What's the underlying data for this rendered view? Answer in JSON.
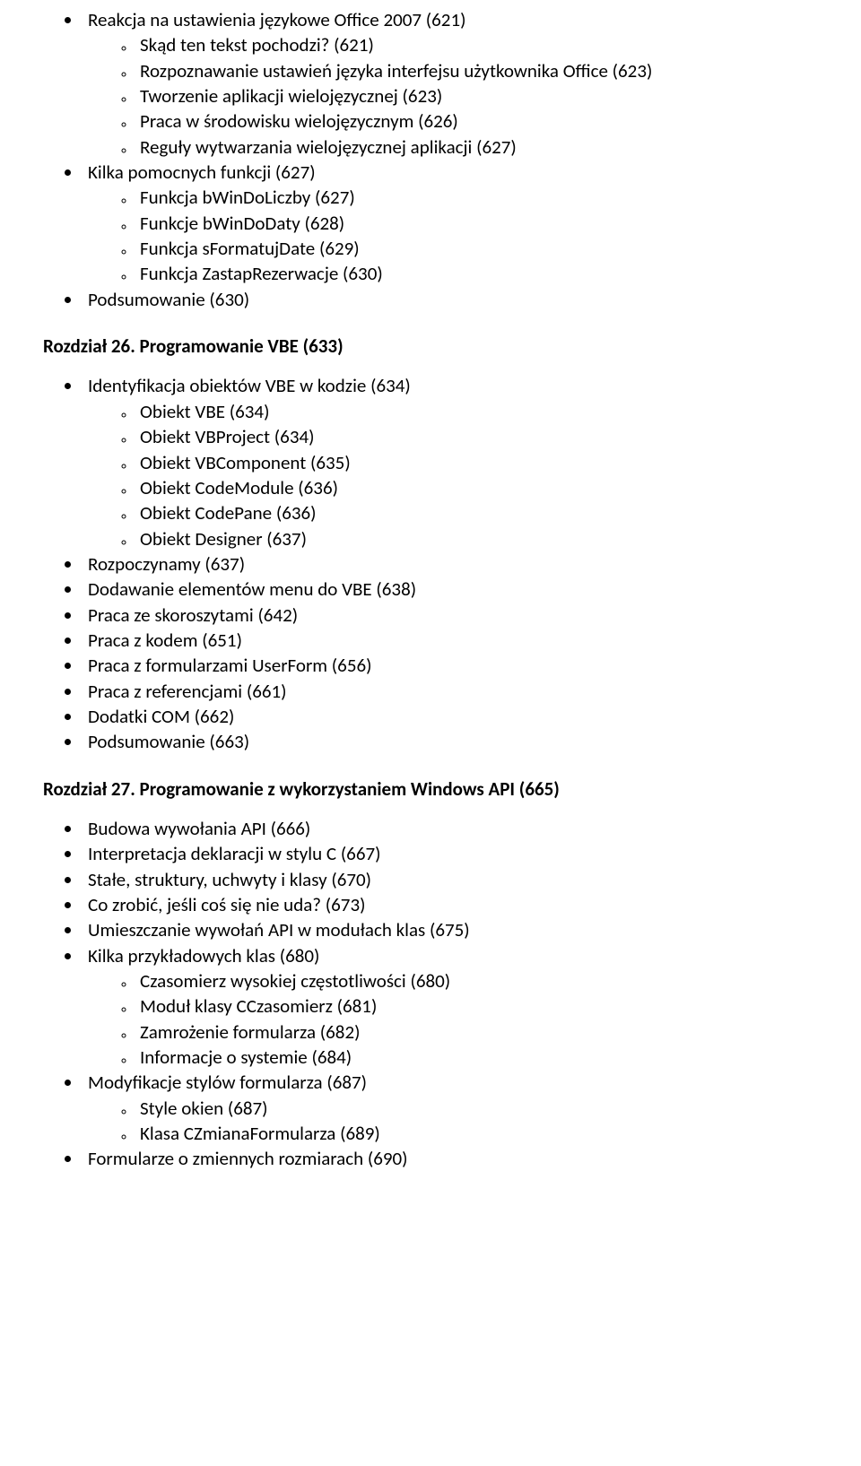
{
  "section_pre": {
    "items": [
      {
        "text": "Reakcja na ustawienia językowe Office 2007 (621)",
        "sub": [
          {
            "text": "Skąd ten tekst pochodzi? (621)"
          },
          {
            "text": "Rozpoznawanie ustawień języka interfejsu użytkownika Office (623)"
          },
          {
            "text": "Tworzenie aplikacji wielojęzycznej (623)"
          },
          {
            "text": "Praca w środowisku wielojęzycznym (626)"
          },
          {
            "text": "Reguły wytwarzania wielojęzycznej aplikacji (627)"
          }
        ]
      },
      {
        "text": "Kilka pomocnych funkcji (627)",
        "sub": [
          {
            "text": "Funkcja bWinDoLiczby (627)"
          },
          {
            "text": "Funkcje bWinDoDaty (628)"
          },
          {
            "text": "Funkcja sFormatujDate (629)"
          },
          {
            "text": "Funkcja ZastapRezerwacje (630)"
          }
        ]
      },
      {
        "text": "Podsumowanie (630)"
      }
    ]
  },
  "chapter26": {
    "title": "Rozdział 26. Programowanie VBE (633)",
    "items": [
      {
        "text": "Identyfikacja obiektów VBE w kodzie (634)",
        "sub": [
          {
            "text": "Obiekt VBE (634)"
          },
          {
            "text": "Obiekt VBProject (634)"
          },
          {
            "text": "Obiekt VBComponent (635)"
          },
          {
            "text": "Obiekt CodeModule (636)"
          },
          {
            "text": "Obiekt CodePane (636)"
          },
          {
            "text": "Obiekt Designer (637)"
          }
        ]
      },
      {
        "text": "Rozpoczynamy (637)"
      },
      {
        "text": "Dodawanie elementów menu do VBE (638)"
      },
      {
        "text": "Praca ze skoroszytami (642)"
      },
      {
        "text": "Praca z kodem (651)"
      },
      {
        "text": "Praca z formularzami UserForm (656)"
      },
      {
        "text": "Praca z referencjami (661)"
      },
      {
        "text": "Dodatki COM (662)"
      },
      {
        "text": "Podsumowanie (663)"
      }
    ]
  },
  "chapter27": {
    "title": "Rozdział 27. Programowanie z wykorzystaniem Windows API (665)",
    "items": [
      {
        "text": "Budowa wywołania API (666)"
      },
      {
        "text": "Interpretacja deklaracji w stylu C (667)"
      },
      {
        "text": "Stałe, struktury, uchwyty i klasy (670)"
      },
      {
        "text": "Co zrobić, jeśli coś się nie uda? (673)"
      },
      {
        "text": "Umieszczanie wywołań API w modułach klas (675)"
      },
      {
        "text": "Kilka przykładowych klas (680)",
        "sub": [
          {
            "text": "Czasomierz wysokiej częstotliwości (680)"
          },
          {
            "text": "Moduł klasy CCzasomierz (681)"
          },
          {
            "text": "Zamrożenie formularza (682)"
          },
          {
            "text": "Informacje o systemie (684)"
          }
        ]
      },
      {
        "text": "Modyfikacje stylów formularza (687)",
        "sub": [
          {
            "text": "Style okien (687)"
          },
          {
            "text": "Klasa CZmianaFormularza (689)"
          }
        ]
      },
      {
        "text": "Formularze o zmiennych rozmiarach (690)"
      }
    ]
  }
}
